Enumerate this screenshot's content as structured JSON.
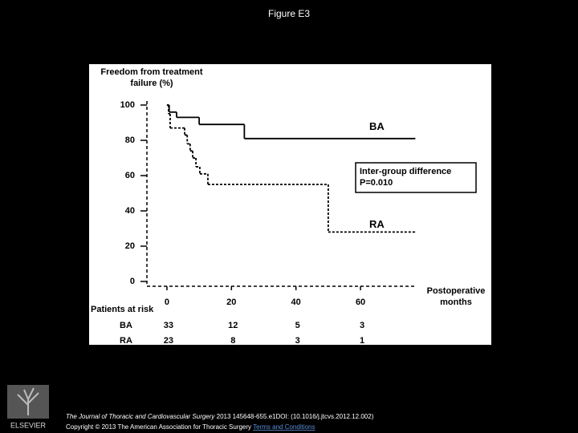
{
  "slide_title": "Figure E3",
  "chart_data": {
    "type": "step",
    "y_label": "Freedom from treatment failure (%)",
    "x_label": "Postoperative months",
    "xlim": [
      -6.2,
      77.4
    ],
    "xticks": [
      0,
      20,
      40,
      60
    ],
    "ylim": [
      0,
      100
    ],
    "yticks": [
      0,
      20,
      40,
      60,
      80,
      100
    ],
    "series": [
      {
        "name": "BA",
        "color": "#000000",
        "dash": false,
        "x": [
          0,
          0.7,
          3,
          10,
          24,
          77
        ],
        "values": [
          100,
          96,
          93,
          89,
          81,
          81
        ]
      },
      {
        "name": "RA",
        "color": "#000000",
        "dash": true,
        "x": [
          0,
          0.5,
          1,
          5.5,
          6.3,
          7.2,
          8,
          9,
          10.2,
          12.7,
          50,
          77
        ],
        "values": [
          100,
          95,
          87,
          83,
          78,
          74,
          70,
          65,
          61,
          55,
          28,
          28
        ]
      }
    ],
    "annotation": "Inter-group difference P=0.010",
    "risk_table": {
      "title": "Patients at risk",
      "rows": [
        {
          "name": "BA",
          "values": [
            33,
            12,
            5,
            3
          ]
        },
        {
          "name": "RA",
          "values": [
            23,
            8,
            3,
            1
          ]
        }
      ]
    }
  },
  "footer": {
    "publisher": "ELSEVIER",
    "journal": "The Journal of Thoracic and Cardiovascular Surgery",
    "citation": "2013 145648-655.e1DOI: (10.1016/j.jtcvs.2012.12.002)",
    "copyright": "Copyright © 2013 The American Association for Thoracic Surgery",
    "link": "Terms and Conditions"
  }
}
